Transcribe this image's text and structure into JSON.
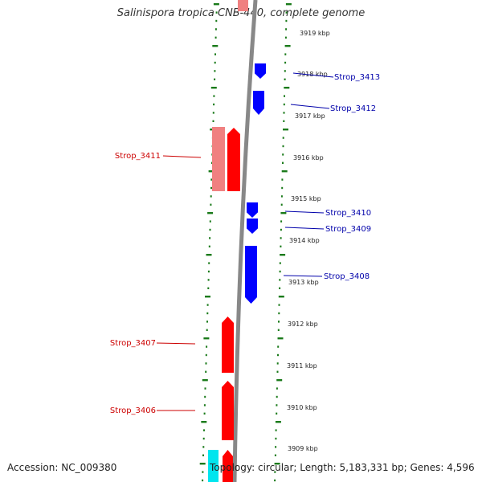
{
  "title": "Salinispora tropica CNB-440, complete genome",
  "footer": {
    "accession": "Accession: NC_009380",
    "topology": "Topology: circular; Length: 5,183,331 bp; Genes: 4,596"
  },
  "colors": {
    "forward_gene": "#ff0000",
    "forward_gene_light": "#f08080",
    "reverse_gene": "#0000ff",
    "other_feature": "#00e5ee",
    "backbone": "#888888",
    "tick": "#1a7a1a",
    "forward_label": "#cc0000",
    "reverse_label": "#0000aa",
    "kbp_label": "#222222"
  },
  "kbp_labels": [
    "3919 kbp",
    "3918 kbp",
    "3917 kbp",
    "3916 kbp",
    "3915 kbp",
    "3914 kbp",
    "3913 kbp",
    "3912 kbp",
    "3911 kbp",
    "3910 kbp",
    "3909 kbp"
  ],
  "genes": [
    {
      "name": "Strop_3413",
      "strand": "reverse"
    },
    {
      "name": "Strop_3412",
      "strand": "reverse"
    },
    {
      "name": "Strop_3411",
      "strand": "forward"
    },
    {
      "name": "Strop_3410",
      "strand": "reverse"
    },
    {
      "name": "Strop_3409",
      "strand": "reverse"
    },
    {
      "name": "Strop_3408",
      "strand": "reverse"
    },
    {
      "name": "Strop_3407",
      "strand": "forward"
    },
    {
      "name": "Strop_3406",
      "strand": "forward"
    }
  ]
}
